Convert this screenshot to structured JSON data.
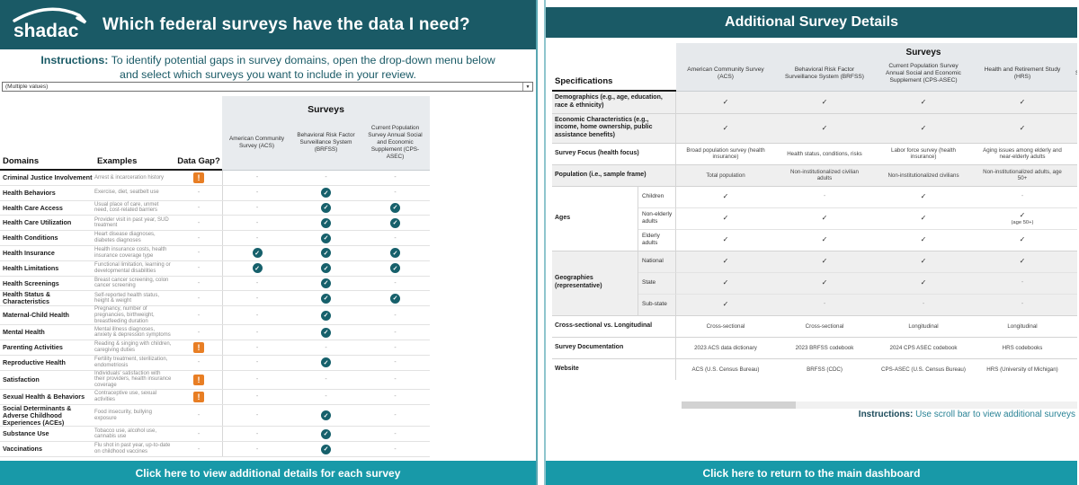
{
  "colors": {
    "brand_dark_teal": "#1a5a66",
    "action_bar_teal": "#1899a8",
    "check_circle_teal": "#16606b",
    "alert_orange": "#e87e24"
  },
  "brand": {
    "logo_text": "shadac"
  },
  "left_panel": {
    "title": "Which federal surveys have the data I need?",
    "instructions": {
      "label": "Instructions:",
      "line1": "To identify potential gaps in survey domains, open the drop-down menu below",
      "line2": "and select which surveys you want to include in your review."
    },
    "dropdown_value": "(Multiple values)",
    "table": {
      "col_domains": "Domains",
      "col_examples": "Examples",
      "col_datagap": "Data Gap?",
      "surveys_header": "Surveys",
      "survey_columns": [
        "American Community Survey (ACS)",
        "Behavioral Risk Factor Surveillance System (BRFSS)",
        "Current Population Survey Annual Social and Economic Supplement (CPS-ASEC)"
      ],
      "rows": [
        {
          "domain": "Criminal Justice Involvement",
          "examples": "Arrest & incarceration history",
          "gap": "!",
          "marks": [
            "-",
            "-",
            "-"
          ]
        },
        {
          "domain": "Health Behaviors",
          "examples": "Exercise, diet, seatbelt use",
          "gap": "-",
          "marks": [
            "-",
            "✓",
            "-"
          ]
        },
        {
          "domain": "Health Care Access",
          "examples": "Usual place of care, unmet need, cost-related barriers",
          "gap": "-",
          "marks": [
            "-",
            "✓",
            "✓"
          ]
        },
        {
          "domain": "Health Care Utilization",
          "examples": "Provider visit in past year, SUD treatment",
          "gap": "-",
          "marks": [
            "-",
            "✓",
            "✓"
          ]
        },
        {
          "domain": "Health Conditions",
          "examples": "Heart disease diagnoses, diabetes diagnoses",
          "gap": "-",
          "marks": [
            "-",
            "✓",
            "-"
          ]
        },
        {
          "domain": "Health Insurance",
          "examples": "Health insurance costs, health insurance coverage type",
          "gap": "-",
          "marks": [
            "✓",
            "✓",
            "✓"
          ]
        },
        {
          "domain": "Health Limitations",
          "examples": "Functional limitation, learning or developmental disabilities",
          "gap": "-",
          "marks": [
            "✓",
            "✓",
            "✓"
          ]
        },
        {
          "domain": "Health Screenings",
          "examples": "Breast cancer screening, colon cancer screening",
          "gap": "-",
          "marks": [
            "-",
            "✓",
            "-"
          ]
        },
        {
          "domain": "Health Status & Characteristics",
          "examples": "Self-reported health status, height & weight",
          "gap": "-",
          "marks": [
            "-",
            "✓",
            "✓"
          ]
        },
        {
          "domain": "Maternal-Child Health",
          "examples": "Pregnancy, number of pregnancies, birthweight, breastfeeding duration",
          "gap": "-",
          "marks": [
            "-",
            "✓",
            "-"
          ]
        },
        {
          "domain": "Mental Health",
          "examples": "Mental illness diagnoses, anxiety & depression symptoms",
          "gap": "-",
          "marks": [
            "-",
            "✓",
            "-"
          ]
        },
        {
          "domain": "Parenting Activities",
          "examples": "Reading & singing with children, caregiving duties",
          "gap": "!",
          "marks": [
            "-",
            "-",
            "-"
          ]
        },
        {
          "domain": "Reproductive Health",
          "examples": "Fertility treatment, sterilization, endometriosis",
          "gap": "-",
          "marks": [
            "-",
            "✓",
            "-"
          ]
        },
        {
          "domain": "Satisfaction",
          "examples": "Individuals' satisfaction with their providers, health insurance coverage",
          "gap": "!",
          "marks": [
            "-",
            "-",
            "-"
          ]
        },
        {
          "domain": "Sexual Health & Behaviors",
          "examples": "Contraceptive use, sexual activities",
          "gap": "!",
          "marks": [
            "-",
            "-",
            "-"
          ]
        },
        {
          "domain": "Social Determinants & Adverse Childhood Experiences (ACEs)",
          "examples": "Food insecurity, bullying exposure",
          "gap": "-",
          "marks": [
            "-",
            "✓",
            "-"
          ]
        },
        {
          "domain": "Substance Use",
          "examples": "Tobacco use, alcohol use, cannabis use",
          "gap": "-",
          "marks": [
            "-",
            "✓",
            "-"
          ]
        },
        {
          "domain": "Vaccinations",
          "examples": "Flu shot in past year, up-to-date on childhood vaccines",
          "gap": "-",
          "marks": [
            "-",
            "✓",
            "-"
          ]
        }
      ]
    },
    "footer_button": "Click here to view additional details for each survey"
  },
  "right_panel": {
    "title": "Additional Survey Details",
    "table": {
      "specs_header": "Specifications",
      "surveys_header": "Surveys",
      "survey_columns": [
        "American Community Survey (ACS)",
        "Behavioral Risk Factor Surveillance System (BRFSS)",
        "Current Population Survey Annual Social and Economic Supplement (CPS-ASEC)",
        "Health and Retirement Study (HRS)",
        "S"
      ],
      "rows": [
        {
          "label": "Demographics (e.g., age, education, race & ethnicity)",
          "shaded": true,
          "cells": [
            "✓",
            "✓",
            "✓",
            "✓"
          ]
        },
        {
          "label": "Economic Characteristics (e.g., income, home ownership, public assistance benefits)",
          "shaded": true,
          "cells": [
            "✓",
            "✓",
            "✓",
            "✓"
          ]
        },
        {
          "label": "Survey Focus (health focus)",
          "shaded": false,
          "cells": [
            "Broad population survey (health insurance)",
            "Health status, conditions, risks",
            "Labor force survey (health insurance)",
            "Aging issues among elderly and near-elderly adults"
          ]
        },
        {
          "label": "Population (i.e., sample frame)",
          "shaded": true,
          "cells": [
            "Total population",
            "Non-institutionalized civilian adults",
            "Non-institutionalized civilians",
            "Non-institutionalized adults, age 50+"
          ]
        },
        {
          "label": "",
          "group": "Ages",
          "groupPos": "start",
          "sub": "Children",
          "shaded": false,
          "cells": [
            "✓",
            "-",
            "✓",
            "-"
          ]
        },
        {
          "label": "Ages",
          "group": "Ages",
          "groupPos": "mid",
          "sub": "Non-elderly adults",
          "shaded": false,
          "cells": [
            "✓",
            "✓",
            "✓",
            "✓ (age 50+)"
          ]
        },
        {
          "label": "",
          "group": "Ages",
          "groupPos": "end",
          "sub": "Elderly adults",
          "shaded": false,
          "cells": [
            "✓",
            "✓",
            "✓",
            "✓"
          ]
        },
        {
          "label": "",
          "group": "Geographies",
          "groupPos": "start",
          "sub": "National",
          "shaded": true,
          "cells": [
            "✓",
            "✓",
            "✓",
            "✓"
          ]
        },
        {
          "label": "Geographies (representative)",
          "group": "Geographies",
          "groupPos": "mid",
          "sub": "State",
          "shaded": true,
          "cells": [
            "✓",
            "✓",
            "✓",
            "-"
          ]
        },
        {
          "label": "",
          "group": "Geographies",
          "groupPos": "end",
          "sub": "Sub-state",
          "shaded": true,
          "cells": [
            "✓",
            "-",
            "-",
            "-"
          ]
        },
        {
          "label": "Cross-sectional vs. Longitudinal",
          "shaded": false,
          "cells": [
            "Cross-sectional",
            "Cross-sectional",
            "Longitudinal",
            "Longitudinal"
          ]
        },
        {
          "label": "Survey Documentation",
          "shaded": false,
          "cells": [
            "2023 ACS data dictionary",
            "2023 BRFSS codebook",
            "2024 CPS ASEC codebook",
            "HRS codebooks"
          ]
        },
        {
          "label": "Website",
          "shaded": false,
          "cells": [
            "ACS (U.S. Census Bureau)",
            "BRFSS (CDC)",
            "CPS-ASEC (U.S. Census Bureau)",
            "HRS (University of Michigan)"
          ]
        }
      ]
    },
    "scroll_instructions": {
      "label": "Instructions:",
      "text": " Use scroll bar to view additional surveys"
    },
    "footer_button": "Click here to return to the main dashboard"
  }
}
